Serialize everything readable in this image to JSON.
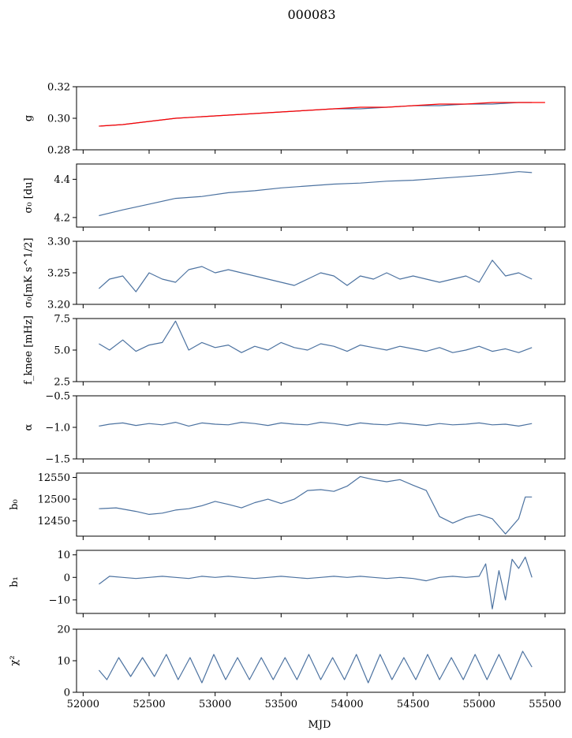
{
  "figure": {
    "title": "000083",
    "xlabel": "MJD"
  },
  "colors": {
    "data": "#4c72a0",
    "model": "#ff0000"
  },
  "chart_data": [
    {
      "type": "line",
      "ylabel": "g",
      "xlim": [
        51950,
        55650
      ],
      "ylim": [
        0.28,
        0.32
      ],
      "yticks": [
        0.28,
        0.3,
        0.32
      ],
      "ytick_labels": [
        "0.28",
        "0.30",
        "0.32"
      ],
      "series": [
        {
          "role": "data",
          "color": "#4c72a0",
          "x": [
            52120,
            52300,
            52500,
            52700,
            52900,
            53100,
            53300,
            53500,
            53700,
            53900,
            54100,
            54300,
            54500,
            54700,
            54900,
            55100,
            55300,
            55400
          ],
          "y": [
            0.295,
            0.296,
            0.298,
            0.3,
            0.301,
            0.302,
            0.303,
            0.304,
            0.305,
            0.306,
            0.306,
            0.307,
            0.308,
            0.308,
            0.309,
            0.309,
            0.31,
            0.31
          ]
        },
        {
          "role": "model",
          "color": "#ff0000",
          "x": [
            52120,
            52300,
            52500,
            52700,
            52900,
            53100,
            53300,
            53500,
            53700,
            53900,
            54100,
            54300,
            54500,
            54700,
            54900,
            55100,
            55300,
            55500
          ],
          "y": [
            0.295,
            0.296,
            0.298,
            0.3,
            0.301,
            0.302,
            0.303,
            0.304,
            0.305,
            0.306,
            0.307,
            0.307,
            0.308,
            0.309,
            0.309,
            0.31,
            0.31,
            0.31
          ]
        }
      ]
    },
    {
      "type": "line",
      "ylabel": "σ₀ [du]",
      "xlim": [
        51950,
        55650
      ],
      "ylim": [
        4.15,
        4.48
      ],
      "yticks": [
        4.2,
        4.4
      ],
      "ytick_labels": [
        "4.2",
        "4.4"
      ],
      "series": [
        {
          "role": "data",
          "color": "#4c72a0",
          "x": [
            52120,
            52300,
            52500,
            52700,
            52900,
            53100,
            53300,
            53500,
            53700,
            53900,
            54100,
            54300,
            54500,
            54700,
            54900,
            55100,
            55300,
            55400
          ],
          "y": [
            4.21,
            4.24,
            4.27,
            4.3,
            4.31,
            4.33,
            4.34,
            4.355,
            4.365,
            4.375,
            4.38,
            4.39,
            4.395,
            4.405,
            4.415,
            4.425,
            4.44,
            4.435
          ]
        }
      ]
    },
    {
      "type": "line",
      "ylabel": "σ₀[mK s^1/2]",
      "xlim": [
        51950,
        55650
      ],
      "ylim": [
        3.2,
        3.3
      ],
      "yticks": [
        3.2,
        3.25,
        3.3
      ],
      "ytick_labels": [
        "3.20",
        "3.25",
        "3.30"
      ],
      "series": [
        {
          "role": "data",
          "color": "#4c72a0",
          "x": [
            52120,
            52200,
            52300,
            52400,
            52500,
            52600,
            52700,
            52800,
            52900,
            53000,
            53100,
            53200,
            53300,
            53400,
            53500,
            53600,
            53700,
            53800,
            53900,
            54000,
            54100,
            54200,
            54300,
            54400,
            54500,
            54600,
            54700,
            54800,
            54900,
            55000,
            55100,
            55200,
            55300,
            55400
          ],
          "y": [
            3.225,
            3.24,
            3.245,
            3.22,
            3.25,
            3.24,
            3.235,
            3.255,
            3.26,
            3.25,
            3.255,
            3.25,
            3.245,
            3.24,
            3.235,
            3.23,
            3.24,
            3.25,
            3.245,
            3.23,
            3.245,
            3.24,
            3.25,
            3.24,
            3.245,
            3.24,
            3.235,
            3.24,
            3.245,
            3.235,
            3.27,
            3.245,
            3.25,
            3.24
          ]
        }
      ]
    },
    {
      "type": "line",
      "ylabel": "f_knee [mHz]",
      "xlim": [
        51950,
        55650
      ],
      "ylim": [
        2.5,
        7.5
      ],
      "yticks": [
        2.5,
        5.0,
        7.5
      ],
      "ytick_labels": [
        "2.5",
        "5.0",
        "7.5"
      ],
      "series": [
        {
          "role": "data",
          "color": "#4c72a0",
          "x": [
            52120,
            52200,
            52300,
            52400,
            52500,
            52600,
            52700,
            52800,
            52900,
            53000,
            53100,
            53200,
            53300,
            53400,
            53500,
            53600,
            53700,
            53800,
            53900,
            54000,
            54100,
            54200,
            54300,
            54400,
            54500,
            54600,
            54700,
            54800,
            54900,
            55000,
            55100,
            55200,
            55300,
            55400
          ],
          "y": [
            5.5,
            5.0,
            5.8,
            4.9,
            5.4,
            5.6,
            7.3,
            5.0,
            5.6,
            5.2,
            5.4,
            4.8,
            5.3,
            5.0,
            5.6,
            5.2,
            5.0,
            5.5,
            5.3,
            4.9,
            5.4,
            5.2,
            5.0,
            5.3,
            5.1,
            4.9,
            5.2,
            4.8,
            5.0,
            5.3,
            4.9,
            5.1,
            4.8,
            5.2
          ]
        }
      ]
    },
    {
      "type": "line",
      "ylabel": "α",
      "xlim": [
        51950,
        55650
      ],
      "ylim": [
        -1.5,
        -0.5
      ],
      "yticks": [
        -1.5,
        -1.0,
        -0.5
      ],
      "ytick_labels": [
        "−1.5",
        "−1.0",
        "−0.5"
      ],
      "series": [
        {
          "role": "data",
          "color": "#4c72a0",
          "x": [
            52120,
            52200,
            52300,
            52400,
            52500,
            52600,
            52700,
            52800,
            52900,
            53000,
            53100,
            53200,
            53300,
            53400,
            53500,
            53600,
            53700,
            53800,
            53900,
            54000,
            54100,
            54200,
            54300,
            54400,
            54500,
            54600,
            54700,
            54800,
            54900,
            55000,
            55100,
            55200,
            55300,
            55400
          ],
          "y": [
            -0.98,
            -0.95,
            -0.93,
            -0.97,
            -0.94,
            -0.96,
            -0.92,
            -0.98,
            -0.93,
            -0.95,
            -0.96,
            -0.92,
            -0.94,
            -0.97,
            -0.93,
            -0.95,
            -0.96,
            -0.92,
            -0.94,
            -0.97,
            -0.93,
            -0.95,
            -0.96,
            -0.93,
            -0.95,
            -0.97,
            -0.94,
            -0.96,
            -0.95,
            -0.93,
            -0.96,
            -0.95,
            -0.98,
            -0.94
          ]
        }
      ]
    },
    {
      "type": "line",
      "ylabel": "b₀",
      "xlim": [
        51950,
        55650
      ],
      "ylim": [
        12415,
        12560
      ],
      "yticks": [
        12450,
        12500,
        12550
      ],
      "ytick_labels": [
        "12450",
        "12500",
        "12550"
      ],
      "series": [
        {
          "role": "data",
          "color": "#4c72a0",
          "x": [
            52120,
            52250,
            52400,
            52500,
            52600,
            52700,
            52800,
            52900,
            53000,
            53100,
            53200,
            53300,
            53400,
            53500,
            53600,
            53700,
            53800,
            53900,
            54000,
            54100,
            54200,
            54300,
            54400,
            54500,
            54600,
            54700,
            54800,
            54900,
            55000,
            55100,
            55200,
            55300,
            55350,
            55400
          ],
          "y": [
            12478,
            12480,
            12472,
            12465,
            12468,
            12475,
            12478,
            12485,
            12495,
            12488,
            12480,
            12492,
            12500,
            12490,
            12500,
            12520,
            12522,
            12518,
            12530,
            12552,
            12545,
            12540,
            12545,
            12532,
            12520,
            12460,
            12445,
            12458,
            12465,
            12455,
            12420,
            12455,
            12505,
            12505
          ]
        }
      ]
    },
    {
      "type": "line",
      "ylabel": "b₁",
      "xlim": [
        51950,
        55650
      ],
      "ylim": [
        -16,
        12
      ],
      "yticks": [
        -10,
        0,
        10
      ],
      "ytick_labels": [
        "−10",
        "0",
        "10"
      ],
      "series": [
        {
          "role": "data",
          "color": "#4c72a0",
          "x": [
            52120,
            52200,
            52300,
            52400,
            52500,
            52600,
            52700,
            52800,
            52900,
            53000,
            53100,
            53200,
            53300,
            53400,
            53500,
            53600,
            53700,
            53800,
            53900,
            54000,
            54100,
            54200,
            54300,
            54400,
            54500,
            54600,
            54700,
            54800,
            54900,
            55000,
            55050,
            55100,
            55150,
            55200,
            55250,
            55300,
            55350,
            55400
          ],
          "y": [
            -3,
            0.5,
            0,
            -0.5,
            0,
            0.5,
            0,
            -0.5,
            0.5,
            0,
            0.5,
            0,
            -0.5,
            0,
            0.5,
            0,
            -0.5,
            0,
            0.5,
            0,
            0.5,
            0,
            -0.5,
            0,
            -0.5,
            -1.5,
            0,
            0.5,
            0,
            0.5,
            6,
            -14,
            3,
            -10,
            8,
            4,
            9,
            0
          ]
        }
      ]
    },
    {
      "type": "line",
      "ylabel": "χ²",
      "xlim": [
        51950,
        55650
      ],
      "ylim": [
        0,
        20
      ],
      "yticks": [
        0,
        10,
        20
      ],
      "ytick_labels": [
        "0",
        "10",
        "20"
      ],
      "series": [
        {
          "role": "data",
          "color": "#4c72a0",
          "x": [
            52120,
            52180,
            52270,
            52360,
            52450,
            52540,
            52630,
            52720,
            52810,
            52900,
            52990,
            53080,
            53170,
            53260,
            53350,
            53440,
            53530,
            53620,
            53710,
            53800,
            53890,
            53980,
            54070,
            54160,
            54250,
            54340,
            54430,
            54520,
            54610,
            54700,
            54790,
            54880,
            54970,
            55060,
            55150,
            55240,
            55330,
            55400
          ],
          "y": [
            7,
            4,
            11,
            5,
            11,
            5,
            12,
            4,
            11,
            3,
            12,
            4,
            11,
            4,
            11,
            4,
            11,
            4,
            12,
            4,
            11,
            4,
            12,
            3,
            12,
            4,
            11,
            4,
            12,
            4,
            11,
            4,
            12,
            4,
            12,
            4,
            13,
            8
          ]
        }
      ]
    }
  ],
  "xticks": [
    52000,
    52500,
    53000,
    53500,
    54000,
    54500,
    55000,
    55500
  ],
  "xtick_labels": [
    "52000",
    "52500",
    "53000",
    "53500",
    "54000",
    "54500",
    "55000",
    "55500"
  ]
}
